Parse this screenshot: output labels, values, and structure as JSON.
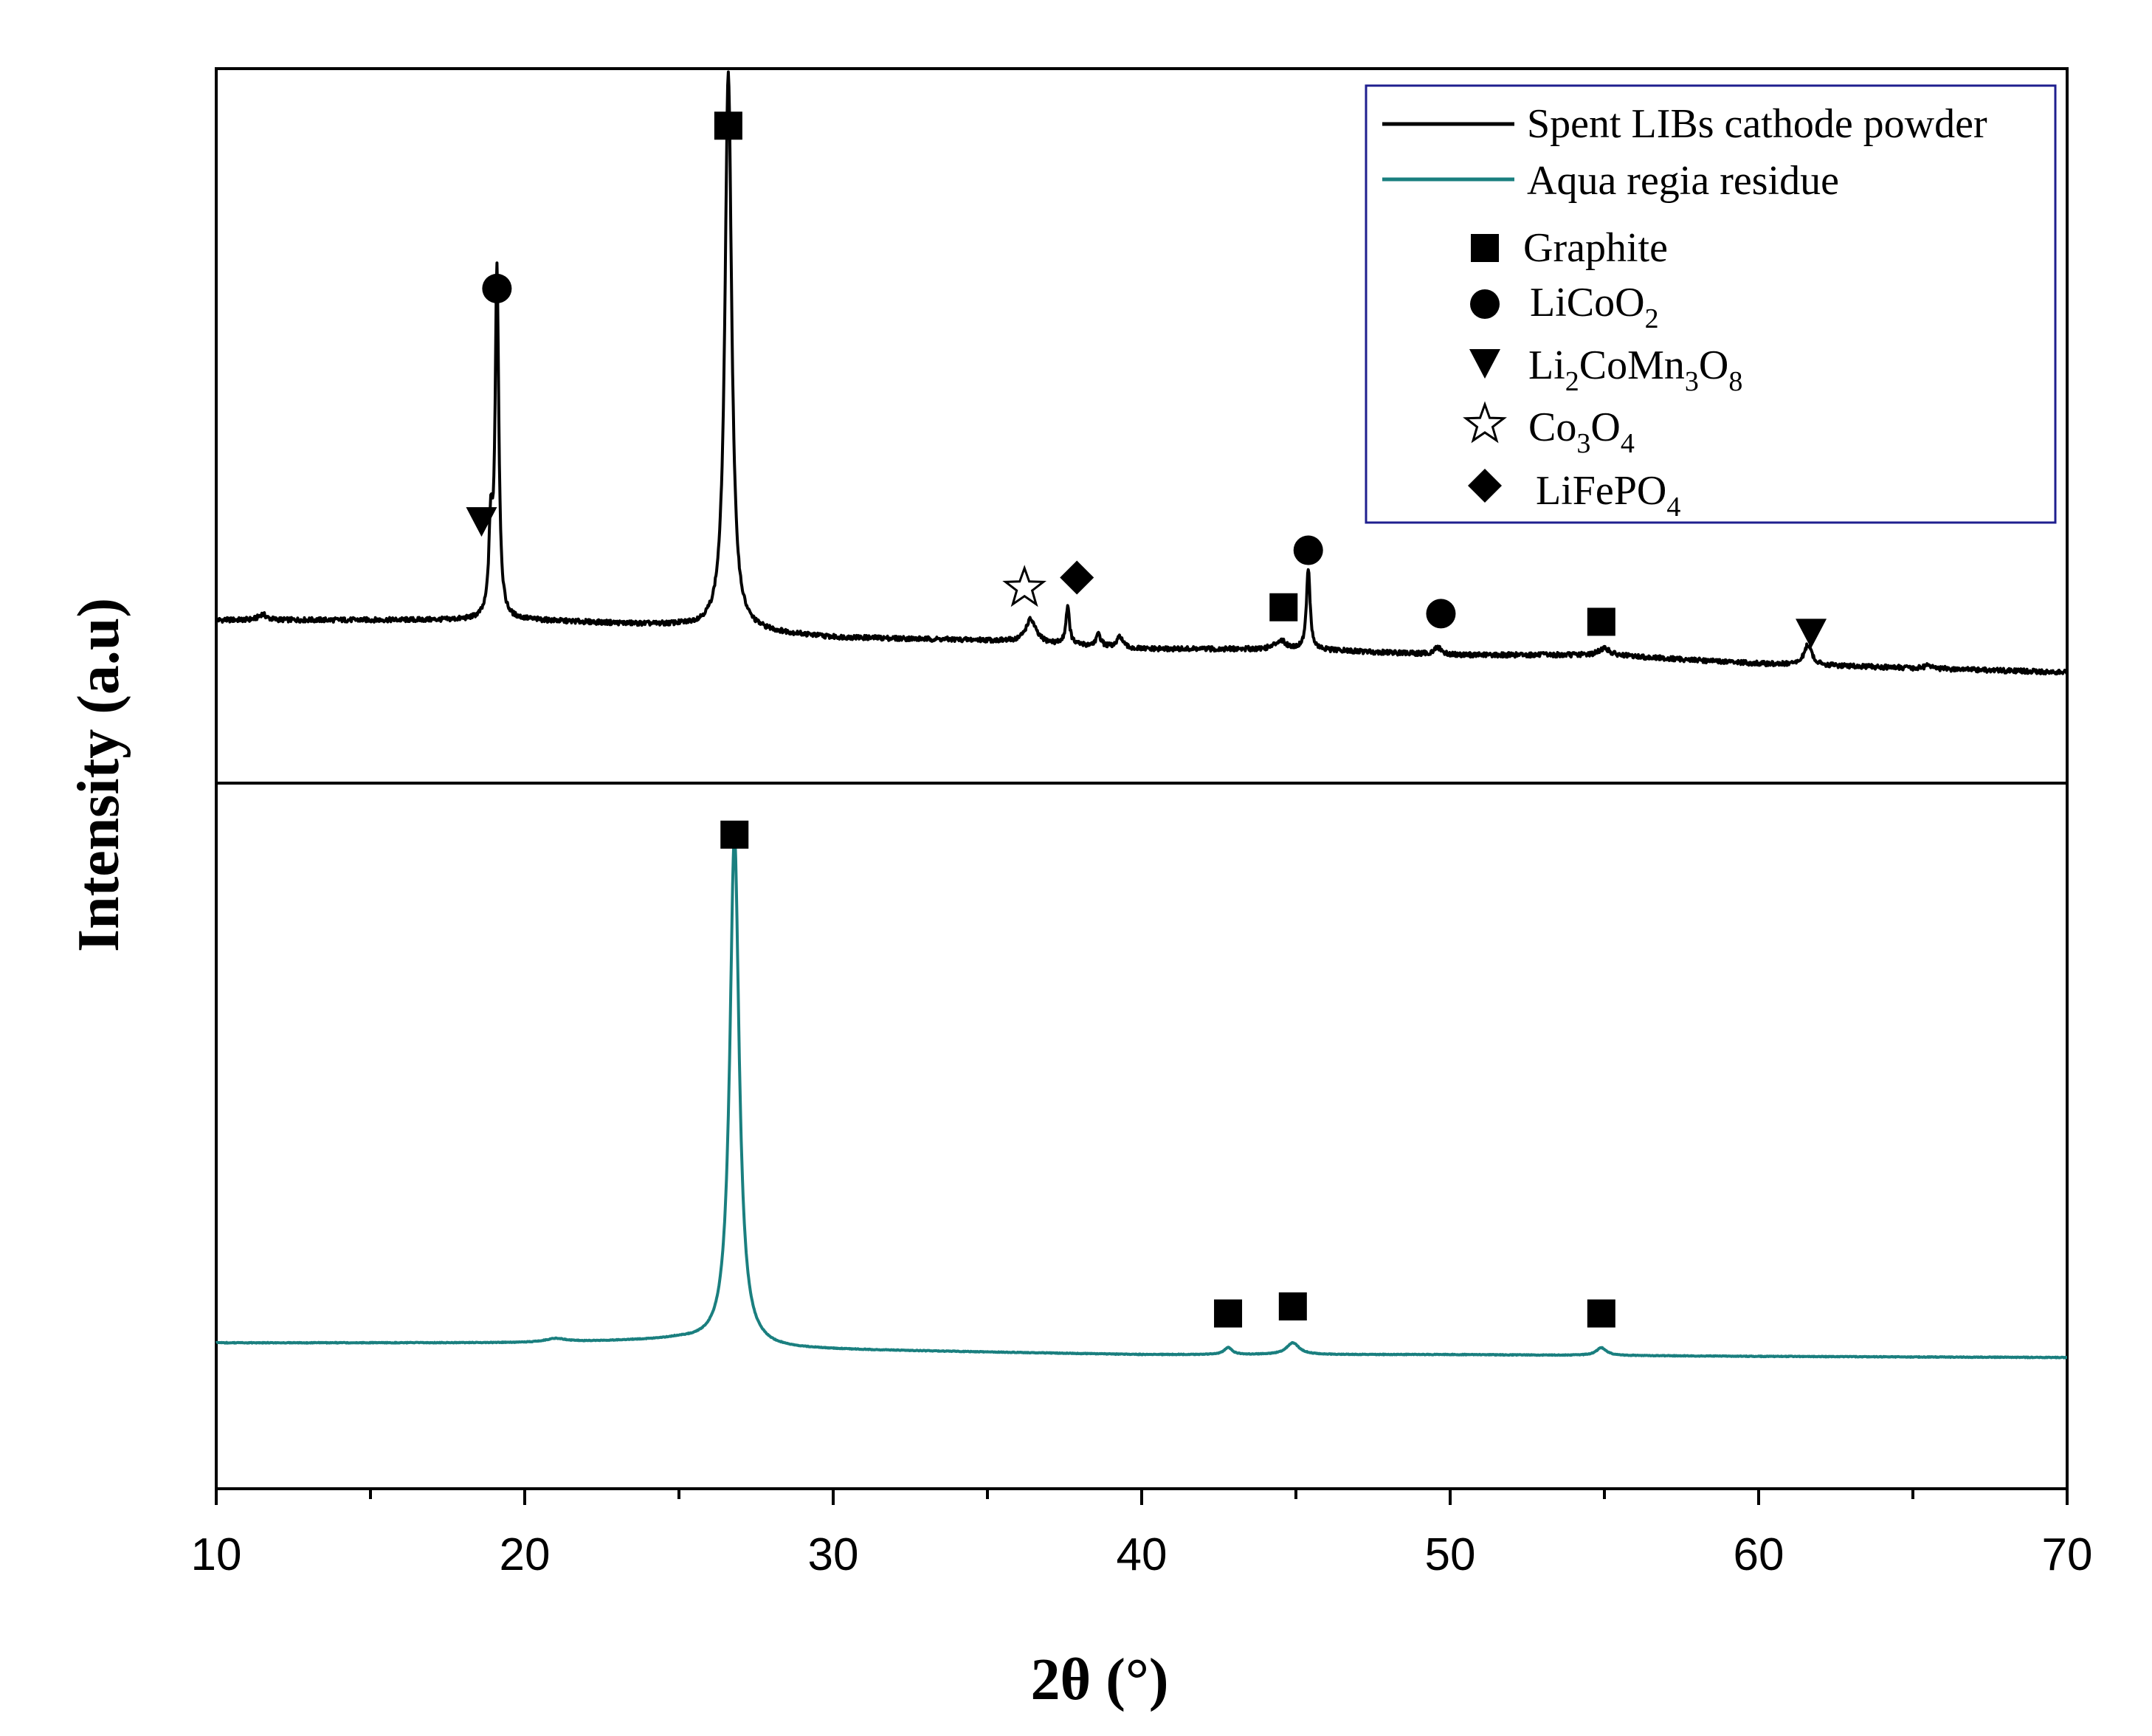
{
  "chart_data": {
    "type": "line",
    "xlabel": "2θ (°)",
    "ylabel": "Intensity (a.u)",
    "xlim": [
      10,
      70
    ],
    "xticks": [
      "10",
      "20",
      "30",
      "40",
      "50",
      "60",
      "70"
    ],
    "grid": false,
    "legend_position": "top-right",
    "colors": {
      "spent": "#000000",
      "residue": "#1a7f7f",
      "legend_border": "#1f1f8f"
    },
    "legend": {
      "lines": [
        {
          "label": "Spent LIBs cathode powder",
          "color": "#000000"
        },
        {
          "label": "Aqua regia residue",
          "color": "#1a7f7f"
        }
      ],
      "phases": [
        {
          "marker": "filled-square",
          "label": "Graphite"
        },
        {
          "marker": "filled-circle",
          "label": "LiCoO",
          "sub": "2"
        },
        {
          "marker": "filled-down-triangle",
          "label": "Li",
          "sub": "2",
          "label2": "CoMn",
          "sub2": "3",
          "label3": "O",
          "sub3": "8"
        },
        {
          "marker": "open-star",
          "label": "Co",
          "sub": "3",
          "label2": "O",
          "sub2": "4"
        },
        {
          "marker": "filled-diamond",
          "label": "LiFePO",
          "sub": "4"
        }
      ]
    },
    "series": [
      {
        "name": "Spent LIBs cathode powder",
        "panel": "top",
        "baseline": [
          [
            10,
            0.09
          ],
          [
            20,
            0.09
          ],
          [
            25,
            0.08
          ],
          [
            30,
            0.06
          ],
          [
            35,
            0.055
          ],
          [
            40,
            0.04
          ],
          [
            45,
            0.04
          ],
          [
            50,
            0.03
          ],
          [
            55,
            0.03
          ],
          [
            60,
            0.015
          ],
          [
            70,
            0.0
          ]
        ],
        "peaks": [
          {
            "x": 11.5,
            "h": 0.01,
            "w": 0.15
          },
          {
            "x": 18.9,
            "h": 0.15,
            "w": 0.07
          },
          {
            "x": 19.1,
            "h": 0.6,
            "w": 0.07
          },
          {
            "x": 26.6,
            "h": 0.96,
            "w": 0.13
          },
          {
            "x": 36.4,
            "h": 0.04,
            "w": 0.2
          },
          {
            "x": 37.6,
            "h": 0.065,
            "w": 0.07
          },
          {
            "x": 38.6,
            "h": 0.02,
            "w": 0.1
          },
          {
            "x": 39.3,
            "h": 0.02,
            "w": 0.1
          },
          {
            "x": 44.5,
            "h": 0.015,
            "w": 0.2
          },
          {
            "x": 45.4,
            "h": 0.14,
            "w": 0.07
          },
          {
            "x": 49.6,
            "h": 0.012,
            "w": 0.15
          },
          {
            "x": 55.0,
            "h": 0.012,
            "w": 0.2
          },
          {
            "x": 61.6,
            "h": 0.035,
            "w": 0.15
          },
          {
            "x": 65.5,
            "h": 0.008,
            "w": 0.1
          }
        ],
        "noise": 0.004
      },
      {
        "name": "Aqua regia residue",
        "panel": "bottom",
        "baseline": [
          [
            10,
            0.085
          ],
          [
            20,
            0.085
          ],
          [
            25,
            0.09
          ],
          [
            28,
            0.075
          ],
          [
            40,
            0.065
          ],
          [
            50,
            0.065
          ],
          [
            60,
            0.062
          ],
          [
            70,
            0.06
          ]
        ],
        "peaks": [
          {
            "x": 21.0,
            "h": 0.006,
            "w": 0.4
          },
          {
            "x": 26.8,
            "h": 0.87,
            "w": 0.18
          },
          {
            "x": 42.8,
            "h": 0.012,
            "w": 0.15
          },
          {
            "x": 44.9,
            "h": 0.02,
            "w": 0.25
          },
          {
            "x": 54.9,
            "h": 0.013,
            "w": 0.2
          }
        ],
        "noise": 0.0006
      }
    ],
    "annotations": [
      {
        "panel": "top",
        "marker": "filled-square",
        "x": 26.6,
        "y": 0.94
      },
      {
        "panel": "top",
        "marker": "filled-circle",
        "x": 19.1,
        "y": 0.66
      },
      {
        "panel": "top",
        "marker": "filled-down-triangle",
        "x": 18.6,
        "y": 0.26
      },
      {
        "panel": "top",
        "marker": "open-star",
        "x": 36.2,
        "y": 0.145
      },
      {
        "panel": "top",
        "marker": "filled-diamond",
        "x": 37.9,
        "y": 0.163
      },
      {
        "panel": "top",
        "marker": "filled-circle",
        "x": 45.4,
        "y": 0.21
      },
      {
        "panel": "top",
        "marker": "filled-square",
        "x": 44.6,
        "y": 0.112
      },
      {
        "panel": "top",
        "marker": "filled-circle",
        "x": 49.7,
        "y": 0.101
      },
      {
        "panel": "top",
        "marker": "filled-square",
        "x": 54.9,
        "y": 0.087
      },
      {
        "panel": "top",
        "marker": "filled-down-triangle",
        "x": 61.7,
        "y": 0.068
      },
      {
        "panel": "bottom",
        "marker": "filled-square",
        "x": 26.8,
        "y": 0.95
      },
      {
        "panel": "bottom",
        "marker": "filled-square",
        "x": 42.8,
        "y": 0.135
      },
      {
        "panel": "bottom",
        "marker": "filled-square",
        "x": 44.9,
        "y": 0.147
      },
      {
        "panel": "bottom",
        "marker": "filled-square",
        "x": 54.9,
        "y": 0.135
      }
    ]
  }
}
